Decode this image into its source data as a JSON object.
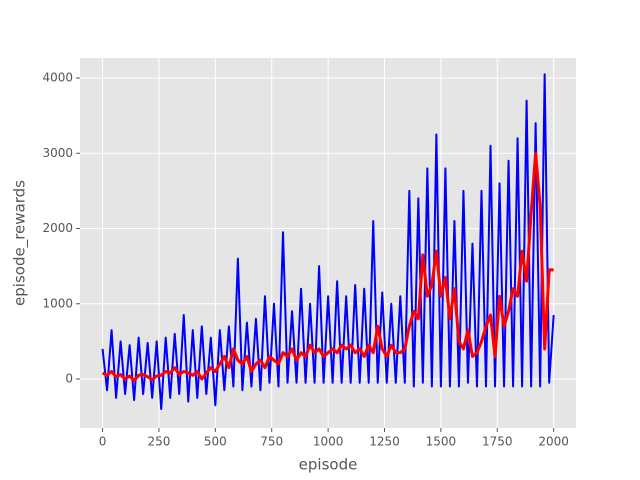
{
  "chart_data": {
    "type": "line",
    "x_label": "episode",
    "y_label": "episode_rewards",
    "x": [
      0,
      20,
      40,
      60,
      80,
      100,
      120,
      140,
      160,
      180,
      200,
      220,
      240,
      260,
      280,
      300,
      320,
      340,
      360,
      380,
      400,
      420,
      440,
      460,
      480,
      500,
      520,
      540,
      560,
      580,
      600,
      620,
      640,
      660,
      680,
      700,
      720,
      740,
      760,
      780,
      800,
      820,
      840,
      860,
      880,
      900,
      920,
      940,
      960,
      980,
      1000,
      1020,
      1040,
      1060,
      1080,
      1100,
      1120,
      1140,
      1160,
      1180,
      1200,
      1220,
      1240,
      1260,
      1280,
      1300,
      1320,
      1340,
      1360,
      1380,
      1400,
      1420,
      1440,
      1460,
      1480,
      1500,
      1520,
      1540,
      1560,
      1580,
      1600,
      1620,
      1640,
      1660,
      1680,
      1700,
      1720,
      1740,
      1760,
      1780,
      1800,
      1820,
      1840,
      1860,
      1880,
      1900,
      1920,
      1940,
      1960,
      1980,
      2000
    ],
    "series": [
      {
        "color": "#0000ff",
        "values": [
          400,
          -150,
          650,
          -250,
          500,
          -200,
          450,
          -280,
          550,
          -200,
          480,
          -250,
          500,
          -400,
          550,
          -250,
          600,
          -200,
          850,
          -300,
          650,
          -250,
          700,
          -200,
          550,
          -350,
          650,
          -150,
          700,
          -100,
          1600,
          -150,
          750,
          -100,
          800,
          -150,
          1100,
          -50,
          1000,
          -100,
          1950,
          -50,
          900,
          -50,
          1200,
          -50,
          1000,
          -50,
          1500,
          -50,
          1100,
          -50,
          1300,
          -50,
          1100,
          -50,
          1250,
          -50,
          1200,
          -50,
          2100,
          -50,
          1150,
          -50,
          1000,
          -50,
          1100,
          -50,
          2500,
          -100,
          2400,
          -50,
          2800,
          -100,
          3250,
          -100,
          2800,
          -100,
          2100,
          -100,
          2500,
          -50,
          1800,
          -100,
          2500,
          -100,
          3100,
          -100,
          2600,
          -100,
          2900,
          -100,
          3200,
          -100,
          3700,
          -100,
          3400,
          -100,
          4050,
          -50,
          850
        ]
      },
      {
        "color": "#ff0000",
        "values": [
          80,
          50,
          100,
          30,
          60,
          0,
          40,
          -20,
          50,
          60,
          30,
          -10,
          40,
          50,
          100,
          80,
          150,
          60,
          100,
          80,
          50,
          100,
          0,
          80,
          150,
          100,
          200,
          300,
          150,
          400,
          250,
          200,
          300,
          100,
          200,
          250,
          150,
          300,
          250,
          200,
          350,
          300,
          400,
          250,
          350,
          300,
          450,
          350,
          400,
          300,
          350,
          400,
          350,
          450,
          400,
          450,
          350,
          400,
          300,
          450,
          350,
          700,
          400,
          300,
          450,
          350,
          350,
          400,
          700,
          900,
          800,
          1650,
          1100,
          1250,
          1700,
          1100,
          1350,
          800,
          1200,
          500,
          400,
          650,
          300,
          350,
          500,
          700,
          850,
          300,
          1100,
          700,
          900,
          1200,
          1100,
          1700,
          1300,
          2200,
          3000,
          2300,
          400,
          1450,
          1450
        ]
      }
    ],
    "xlim": [
      -100,
      2099
    ],
    "ylim": [
      -651,
      4266
    ],
    "xticks": [
      0,
      250,
      500,
      750,
      1000,
      1250,
      1500,
      1750,
      2000
    ],
    "yticks": [
      0,
      1000,
      2000,
      3000,
      4000
    ],
    "grid": true
  }
}
